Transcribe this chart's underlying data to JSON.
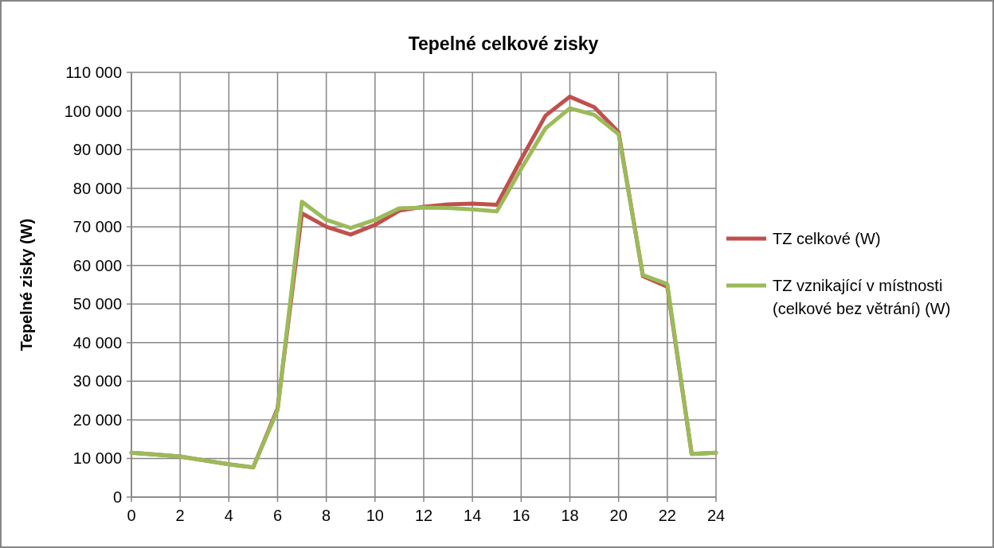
{
  "chart_data": {
    "type": "line",
    "title": "Tepelné celkové zisky",
    "ylabel": "Tepelné zisky (W)",
    "x": [
      0,
      1,
      2,
      3,
      4,
      5,
      6,
      7,
      8,
      9,
      10,
      11,
      12,
      13,
      14,
      15,
      16,
      17,
      18,
      19,
      20,
      21,
      22,
      23,
      24
    ],
    "series": [
      {
        "name": "TZ celkové (W)",
        "color": "#c0504d",
        "values": [
          11500,
          11000,
          10500,
          9500,
          8500,
          7700,
          23000,
          73500,
          70000,
          68000,
          70500,
          74200,
          75200,
          75800,
          76000,
          75700,
          87500,
          98800,
          103700,
          101000,
          94500,
          57200,
          54500,
          11200,
          11500
        ]
      },
      {
        "name": "TZ vznikající v místnosti (celkové bez větrání) (W)",
        "color": "#9bbb59",
        "values": [
          11500,
          11000,
          10500,
          9500,
          8500,
          7700,
          22500,
          76500,
          71800,
          69700,
          71800,
          74800,
          75000,
          74900,
          74500,
          74000,
          85000,
          95500,
          100700,
          99000,
          94000,
          57500,
          55200,
          11200,
          11500
        ]
      }
    ],
    "xlim": [
      0,
      24
    ],
    "xticks": [
      0,
      2,
      4,
      6,
      8,
      10,
      12,
      14,
      16,
      18,
      20,
      22,
      24
    ],
    "ylim": [
      0,
      110000
    ],
    "yticks": [
      {
        "value": 0,
        "label": "0"
      },
      {
        "value": 10000,
        "label": "10 000"
      },
      {
        "value": 20000,
        "label": "20 000"
      },
      {
        "value": 30000,
        "label": "30 000"
      },
      {
        "value": 40000,
        "label": "40 000"
      },
      {
        "value": 50000,
        "label": "50 000"
      },
      {
        "value": 60000,
        "label": "60 000"
      },
      {
        "value": 70000,
        "label": "70 000"
      },
      {
        "value": 80000,
        "label": "80 000"
      },
      {
        "value": 90000,
        "label": "90 000"
      },
      {
        "value": 100000,
        "label": "100 000"
      },
      {
        "value": 110000,
        "label": "110 000"
      }
    ],
    "grid": true,
    "legend": "right",
    "marker": "none",
    "line_style": "solid"
  }
}
